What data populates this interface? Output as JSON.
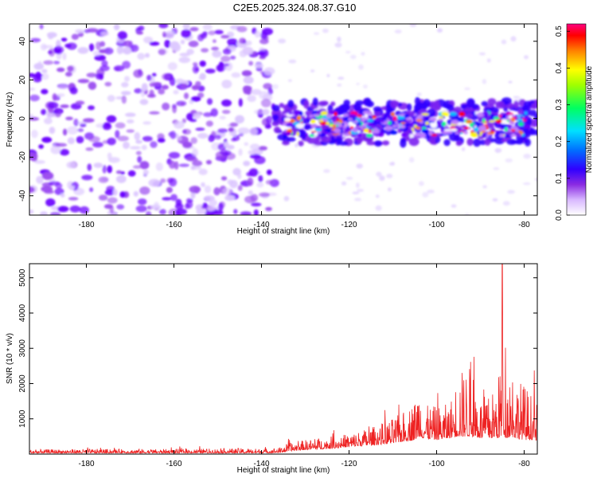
{
  "title": "C2E5.2025.324.08.37.G10",
  "chart_data": [
    {
      "type": "heatmap",
      "title": "C2E5.2025.324.08.37.G10",
      "xlabel": "Height of straight line (km)",
      "ylabel": "Frequency (Hz)",
      "xlim": [
        -193,
        -77
      ],
      "ylim": [
        -50,
        49
      ],
      "xticks": [
        -180,
        -160,
        -140,
        -120,
        -100,
        -80
      ],
      "yticks": [
        -40,
        -20,
        0,
        20,
        40
      ],
      "xtick_labels": [
        "-180",
        "-160",
        "-140",
        "-120",
        "-100",
        "-80"
      ],
      "ytick_labels": [
        "-40",
        "-20",
        "0",
        "20",
        "40"
      ],
      "colorbar": {
        "label": "Normalized spectral amplitude",
        "range": [
          0.0,
          0.52
        ],
        "ticks": [
          0.0,
          0.1,
          0.2,
          0.3,
          0.4,
          0.5
        ],
        "tick_labels": [
          "0.0",
          "0.1",
          "0.2",
          "0.3",
          "0.4",
          "0.5"
        ],
        "colormap": [
          "#ffffff",
          "#c080ff",
          "#6a00ff",
          "#0000ff",
          "#00c8ff",
          "#00ff80",
          "#ffff00",
          "#ff8000",
          "#ff0000",
          "#ff0080"
        ]
      },
      "regions": [
        {
          "name": "broadband noise",
          "x": [
            -193,
            -137
          ],
          "frequency": [
            -50,
            49
          ],
          "amplitude": [
            0.0,
            0.12
          ]
        },
        {
          "name": "signal band",
          "x": [
            -137,
            -77
          ],
          "frequency": [
            -10,
            6
          ],
          "amplitude": [
            0.05,
            0.5
          ]
        }
      ],
      "signal_band_center_hz": -3
    },
    {
      "type": "line",
      "xlabel": "Height of straight line (km)",
      "ylabel": "SNR (10 * v/v)",
      "xlim": [
        -193,
        -77
      ],
      "ylim": [
        0,
        5400
      ],
      "xticks": [
        -180,
        -160,
        -140,
        -120,
        -100,
        -80
      ],
      "yticks": [
        1000,
        2000,
        3000,
        4000,
        5000
      ],
      "xtick_labels": [
        "-180",
        "-160",
        "-140",
        "-120",
        "-100",
        "-80"
      ],
      "ytick_labels": [
        "1000",
        "2000",
        "3000",
        "4000",
        "5000"
      ],
      "color": "#ee2222",
      "series": [
        {
          "name": "SNR envelope",
          "x": [
            -193,
            -180,
            -160,
            -145,
            -140,
            -136,
            -134,
            -130,
            -125,
            -120,
            -115,
            -110,
            -108,
            -105,
            -104,
            -103,
            -100,
            -97,
            -95,
            -92,
            -90,
            -88,
            -86,
            -85,
            -84,
            -83,
            -82,
            -80,
            -78,
            -77
          ],
          "upper": [
            200,
            220,
            220,
            260,
            240,
            280,
            450,
            600,
            700,
            850,
            1100,
            1500,
            1700,
            2300,
            3200,
            2000,
            2000,
            2100,
            3600,
            3900,
            2400,
            2500,
            3100,
            5400,
            3000,
            4600,
            3400,
            3100,
            2500,
            2200
          ],
          "lower": [
            30,
            30,
            30,
            30,
            30,
            40,
            80,
            120,
            150,
            200,
            250,
            300,
            350,
            400,
            500,
            450,
            400,
            450,
            500,
            500,
            450,
            450,
            450,
            500,
            450,
            500,
            450,
            400,
            400,
            380
          ]
        }
      ],
      "peak": {
        "x": -85,
        "y": 5400
      }
    }
  ]
}
